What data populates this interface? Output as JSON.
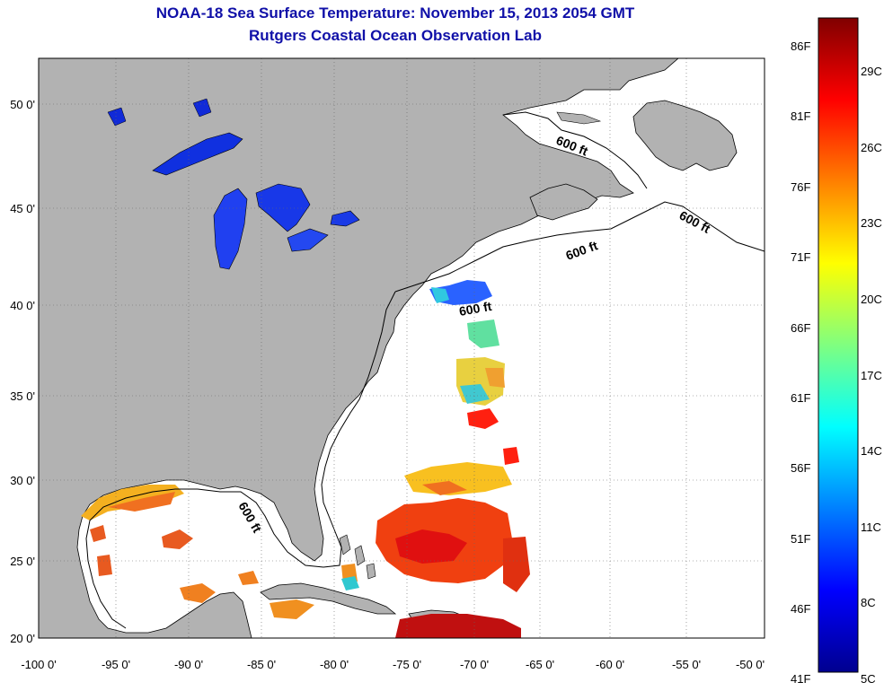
{
  "title": "NOAA-18 Sea Surface Temperature:  November 15, 2013 2054 GMT",
  "subtitle": "Rutgers Coastal Ocean Observation Lab",
  "x_ticks": [
    "-100 0'",
    "-95 0'",
    "-90 0'",
    "-85 0'",
    "-80 0'",
    "-75 0'",
    "-70 0'",
    "-65 0'",
    "-60 0'",
    "-55 0'",
    "-50 0'"
  ],
  "y_ticks": [
    "20 0'",
    "25 0'",
    "30 0'",
    "35 0'",
    "40 0'",
    "45 0'",
    "50 0'"
  ],
  "contour_labels": [
    "600 ft",
    "600 ft",
    "600 ft",
    "600 ft",
    "600 ft"
  ],
  "colorbar": {
    "f_labels": [
      "86F",
      "81F",
      "76F",
      "71F",
      "66F",
      "61F",
      "56F",
      "51F",
      "46F",
      "41F"
    ],
    "c_labels": [
      "29C",
      "26C",
      "23C",
      "20C",
      "17C",
      "14C",
      "11C",
      "8C",
      "5C"
    ],
    "min_c": 5,
    "max_c": 30
  },
  "colors": {
    "land": "#b2b2b2",
    "ocean": "#ffffff",
    "title": "#1010a8"
  }
}
